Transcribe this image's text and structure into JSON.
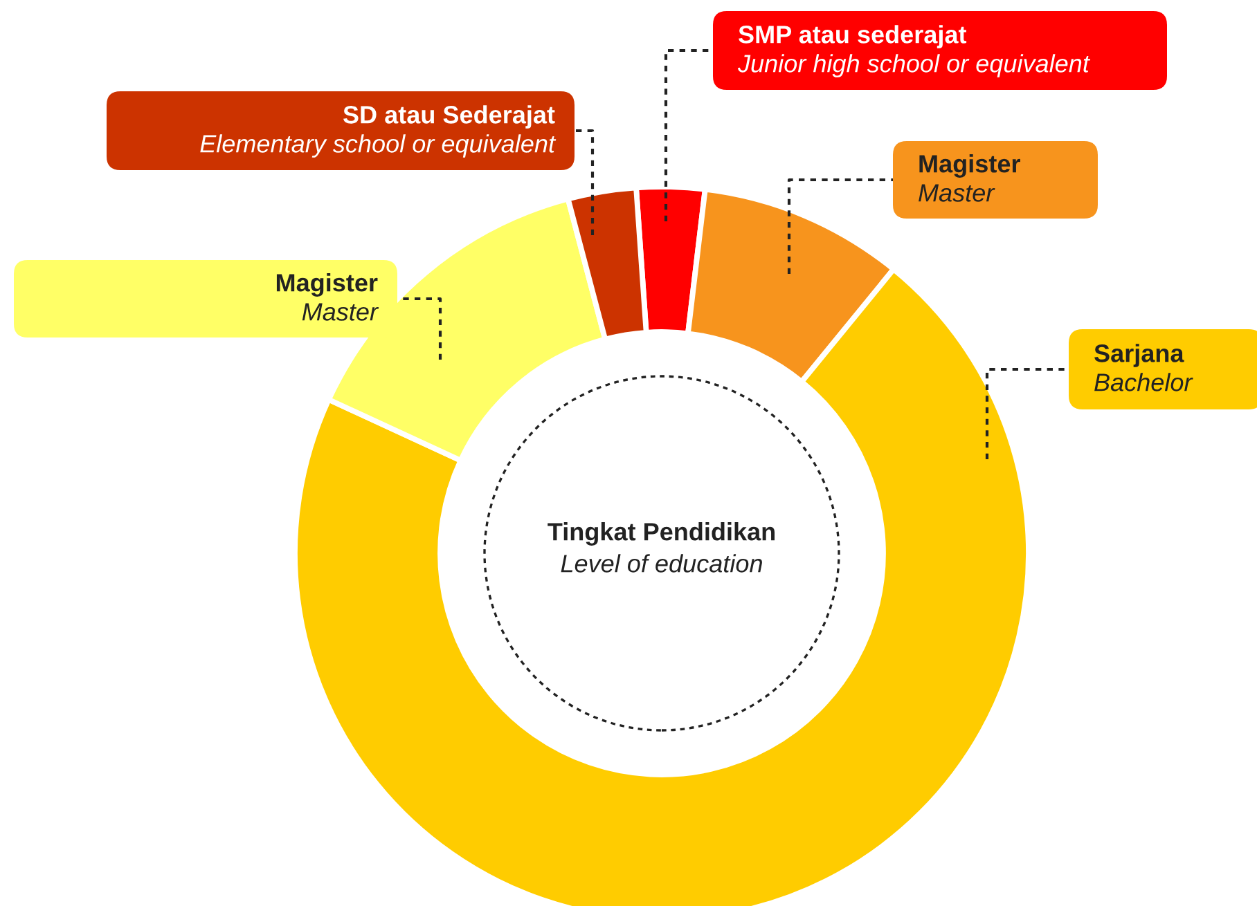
{
  "chart_data": {
    "type": "donut",
    "title": "Tingkat Pendidikan",
    "subtitle": "Level of education",
    "categories": [
      "SMP atau sederajat\nJunior high school or equivalent",
      "Magister\nMaster",
      "Sarjana\nBachelor",
      "Magister\nMaster",
      "SD atau Sederajat\nElementary school or equivalent"
    ],
    "values": [
      3,
      9,
      71,
      14,
      3
    ],
    "colors": [
      "#ff0000",
      "#f7941d",
      "#ffcc00",
      "#ffff66",
      "#cc3300"
    ],
    "legend": false
  }
}
